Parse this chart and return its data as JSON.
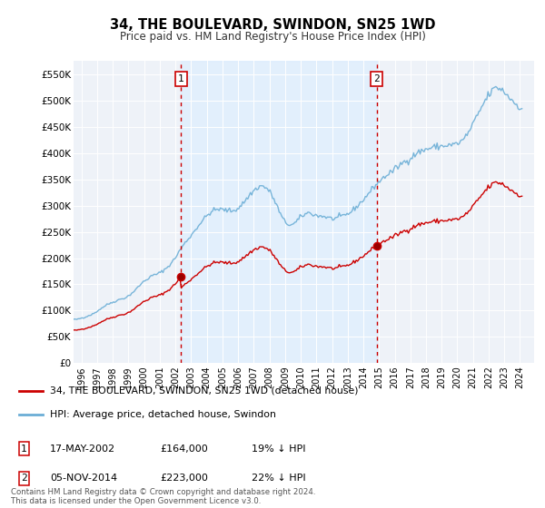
{
  "title": "34, THE BOULEVARD, SWINDON, SN25 1WD",
  "subtitle": "Price paid vs. HM Land Registry's House Price Index (HPI)",
  "legend_line1": "34, THE BOULEVARD, SWINDON, SN25 1WD (detached house)",
  "legend_line2": "HPI: Average price, detached house, Swindon",
  "footnote": "Contains HM Land Registry data © Crown copyright and database right 2024.\nThis data is licensed under the Open Government Licence v3.0.",
  "table": [
    {
      "num": "1",
      "date": "17-MAY-2002",
      "price": "£164,000",
      "hpi": "19% ↓ HPI"
    },
    {
      "num": "2",
      "date": "05-NOV-2014",
      "price": "£223,000",
      "hpi": "22% ↓ HPI"
    }
  ],
  "vline1_year": 2002.37,
  "vline2_year": 2014.84,
  "marker_years": [
    2002.37,
    2014.84
  ],
  "marker_prices": [
    164000,
    223000
  ],
  "hpi_color": "#6baed6",
  "price_color": "#cc0000",
  "vline_color": "#cc0000",
  "shade_color": "#ddeeff",
  "background_color": "#eef2f8",
  "ylim": [
    0,
    575000
  ],
  "xlim_start": 1995.5,
  "xlim_end": 2024.9,
  "yticks": [
    0,
    50000,
    100000,
    150000,
    200000,
    250000,
    300000,
    350000,
    400000,
    450000,
    500000,
    550000
  ],
  "ytick_labels": [
    "£0",
    "£50K",
    "£100K",
    "£150K",
    "£200K",
    "£250K",
    "£300K",
    "£350K",
    "£400K",
    "£450K",
    "£500K",
    "£550K"
  ],
  "hpi_data_monthly": {
    "start_year": 1995,
    "start_month": 1
  }
}
